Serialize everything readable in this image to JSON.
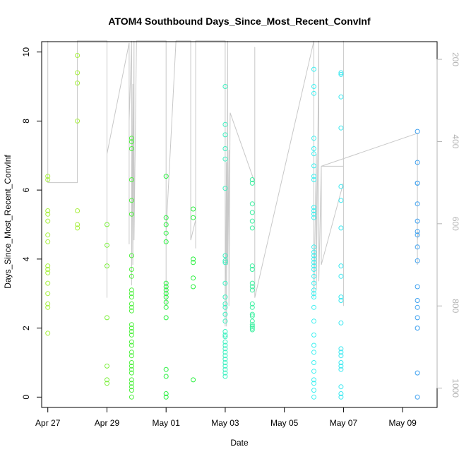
{
  "chart_data": {
    "type": "scatter",
    "title": "ATOM4 Southbound Days_Since_Most_Recent_ConvInf",
    "xlabel": "Date",
    "ylabel": "Days_Since_Most_Recent_ConvInf",
    "x_unit": "date",
    "xlim": [
      "2024-04-26 19:00",
      "2024-05-10 04:00"
    ],
    "ylim": [
      -0.3,
      10.3
    ],
    "y_right_lim": [
      1047,
      157
    ],
    "x_ticks": [
      {
        "date": "2024-04-27",
        "label": "Apr 27"
      },
      {
        "date": "2024-04-29",
        "label": "Apr 29"
      },
      {
        "date": "2024-05-01",
        "label": "May 01"
      },
      {
        "date": "2024-05-03",
        "label": "May 03"
      },
      {
        "date": "2024-05-05",
        "label": "May 05"
      },
      {
        "date": "2024-05-07",
        "label": "May 07"
      },
      {
        "date": "2024-05-09",
        "label": "May 09"
      }
    ],
    "y_ticks": [
      "0",
      "2",
      "4",
      "6",
      "8",
      "10"
    ],
    "y_right_ticks": [
      "200",
      "400",
      "600",
      "800",
      "1000"
    ],
    "grid": false,
    "legend": "none",
    "line_color": "#c8c8c8",
    "point_colors": {
      "Apr 27": "#a6f03c",
      "Apr 28": "#a6f03c",
      "Apr 29": "#7cf03c",
      "Apr 30": "#4cf03c",
      "May 01": "#2af040",
      "May 02": "#2af040",
      "May 03": "#3cf0c0",
      "May 04": "#3cf0a0",
      "May 06": "#3cf0f0",
      "May 07": "#3ce8f0",
      "May 09": "#3ca0f0"
    },
    "series": [
      {
        "id": "points",
        "points": [
          [
            "2024-04-27 00:00",
            "Apr 27",
            [
              6.4,
              6.3,
              5.4,
              5.3,
              5.1,
              4.7,
              4.5,
              3.8,
              3.7,
              3.6,
              3.3,
              3.0,
              2.7,
              2.6,
              1.85
            ]
          ],
          [
            "2024-04-28 00:00",
            "Apr 28",
            [
              9.9,
              9.4,
              9.1,
              8.0,
              5.4,
              5.0,
              4.9
            ]
          ],
          [
            "2024-04-29 00:00",
            "Apr 29",
            [
              5.0,
              4.4,
              3.8,
              2.3,
              0.9,
              0.5,
              0.4
            ]
          ],
          [
            "2024-04-29 20:00",
            "Apr 30",
            [
              7.5,
              7.4,
              7.2,
              6.3,
              5.7,
              5.3,
              4.1,
              3.7,
              3.5,
              3.1,
              3.0,
              2.9,
              2.7,
              2.6,
              2.5,
              2.1,
              2.0,
              1.9,
              1.8,
              1.6,
              1.5,
              1.3,
              1.2,
              1.0,
              0.9,
              0.8,
              0.7,
              0.5,
              0.4,
              0.3,
              0.2,
              0.0
            ]
          ],
          [
            "2024-05-01 00:00",
            "May 01",
            [
              6.4,
              5.2,
              5.0,
              4.75,
              4.5,
              3.3,
              3.2,
              3.1,
              3.0,
              2.9,
              2.75,
              2.6,
              2.3,
              0.8,
              0.6,
              0.1,
              0.0
            ]
          ],
          [
            "2024-05-01 22:00",
            "May 02",
            [
              5.45,
              5.2,
              4.0,
              3.9,
              3.45,
              3.2,
              0.5
            ]
          ],
          [
            "2024-05-03 00:00",
            "May 03",
            [
              9.0,
              7.9,
              7.6,
              7.2,
              6.9,
              6.05,
              4.1,
              3.95,
              3.9,
              3.3,
              2.9,
              2.7,
              2.6,
              2.4,
              2.2,
              1.9,
              1.8,
              1.75,
              1.6,
              1.5,
              1.4,
              1.3,
              1.2,
              1.1,
              1.0,
              0.9,
              0.8,
              0.7,
              0.6
            ]
          ],
          [
            "2024-05-03 22:00",
            "May 04",
            [
              6.3,
              6.2,
              5.6,
              5.35,
              5.1,
              4.9,
              3.8,
              3.7,
              3.3,
              3.2,
              3.1,
              2.7,
              2.6,
              2.4,
              2.35,
              2.2,
              2.1,
              2.05,
              2.0,
              1.95
            ]
          ],
          [
            "2024-05-06 00:00",
            "May 06",
            [
              9.5,
              9.0,
              8.8,
              7.5,
              7.2,
              7.05,
              6.7,
              6.4,
              6.3,
              5.5,
              5.4,
              5.3,
              5.2,
              4.35,
              4.2,
              4.1,
              4.0,
              3.9,
              3.8,
              3.7,
              3.5,
              3.3,
              3.1,
              3.0,
              2.9,
              2.6,
              2.2,
              1.8,
              1.5,
              1.3,
              1.0,
              0.75,
              0.5,
              0.4,
              0.2,
              0.0
            ]
          ],
          [
            "2024-05-06 22:00",
            "May 07",
            [
              9.4,
              9.35,
              8.7,
              7.8,
              6.1,
              5.7,
              4.9,
              3.8,
              3.5,
              2.9,
              2.8,
              2.15,
              1.4,
              1.3,
              1.2,
              1.0,
              0.9,
              0.8,
              0.3,
              0.1,
              0.0
            ]
          ],
          [
            "2024-05-09 12:00",
            "May 09",
            [
              7.7,
              6.8,
              6.2,
              6.2,
              5.6,
              5.1,
              4.8,
              4.7,
              4.35,
              3.95,
              3.2,
              2.8,
              2.6,
              2.3,
              2.0,
              0.7,
              0.0
            ]
          ]
        ]
      },
      {
        "id": "line",
        "points": [
          [
            "2024-04-27 00:00",
            155
          ],
          [
            "2024-04-27 00:00",
            500
          ],
          [
            "2024-04-28 00:00",
            500
          ],
          [
            "2024-04-28 00:00",
            155
          ],
          [
            "2024-04-28 00:00",
            155
          ],
          [
            "2024-04-29 00:00",
            155
          ],
          [
            "2024-04-29 00:00",
            550
          ],
          [
            "2024-04-29 00:00",
            780
          ],
          [
            "2024-04-29 00:00",
            430
          ],
          [
            "2024-04-29 18:00",
            160
          ],
          [
            "2024-04-29 18:00",
            650
          ],
          [
            "2024-04-29 18:00",
            350
          ],
          [
            "2024-04-29 20:00",
            155
          ],
          [
            "2024-04-29 20:00",
            750
          ],
          [
            "2024-04-29 21:00",
            260
          ],
          [
            "2024-04-29 21:00",
            700
          ],
          [
            "2024-04-29 22:00",
            155
          ],
          [
            "2024-04-29 22:00",
            640
          ],
          [
            "2024-04-30 00:00",
            155
          ],
          [
            "2024-05-01 00:00",
            155
          ],
          [
            "2024-05-01 00:00",
            800
          ],
          [
            "2024-05-01 00:00",
            620
          ],
          [
            "2024-05-01 08:00",
            155
          ],
          [
            "2024-05-01 20:00",
            155
          ],
          [
            "2024-05-01 20:00",
            640
          ],
          [
            "2024-05-02 00:00",
            590
          ],
          [
            "2024-05-02 00:00",
            660
          ],
          [
            "2024-05-02 00:00",
            155
          ],
          [
            "2024-05-03 00:00",
            155
          ],
          [
            "2024-05-03 00:00",
            850
          ],
          [
            "2024-05-03 01:00",
            450
          ],
          [
            "2024-05-03 01:00",
            850
          ],
          [
            "2024-05-03 02:00",
            155
          ],
          [
            "2024-05-03 02:00",
            700
          ],
          [
            "2024-05-03 03:00",
            420
          ],
          [
            "2024-05-03 03:00",
            800
          ],
          [
            "2024-05-03 04:00",
            330
          ],
          [
            "2024-05-04 00:00",
            500
          ],
          [
            "2024-05-04 00:00",
            760
          ],
          [
            "2024-05-04 00:00",
            230
          ],
          [
            "2024-05-04 00:00",
            170
          ],
          [
            "2024-05-04 00:00",
            780
          ],
          [
            "2024-05-06 00:00",
            155
          ],
          [
            "2024-05-06 00:00",
            780
          ],
          [
            "2024-05-06 02:00",
            430
          ],
          [
            "2024-05-06 02:00",
            760
          ],
          [
            "2024-05-06 04:00",
            155
          ],
          [
            "2024-05-06 04:00",
            740
          ],
          [
            "2024-05-06 06:00",
            460
          ],
          [
            "2024-05-06 06:00",
            700
          ],
          [
            "2024-05-07 00:00",
            500
          ],
          [
            "2024-05-07 00:00",
            155
          ],
          [
            "2024-05-07 00:00",
            800
          ],
          [
            "2024-05-07 00:00",
            155
          ],
          [
            "2024-05-07 00:00",
            460
          ],
          [
            "2024-05-06 06:00",
            460
          ],
          [
            "2024-05-09 12:00",
            380
          ],
          [
            "2024-05-09 12:00",
            700
          ],
          [
            "2024-05-09 12:00",
            640
          ],
          [
            "2024-05-09 13:00",
            620
          ]
        ]
      }
    ]
  }
}
